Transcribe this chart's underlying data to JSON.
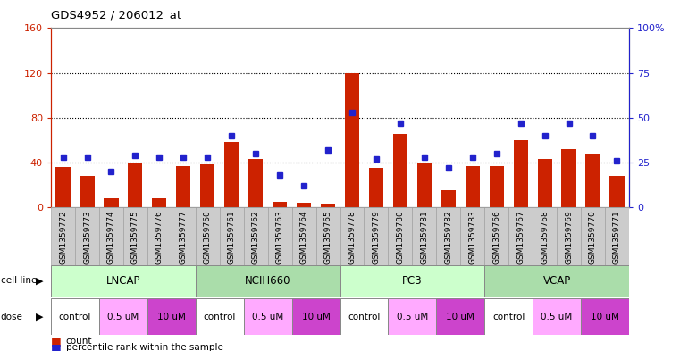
{
  "title": "GDS4952 / 206012_at",
  "samples": [
    "GSM1359772",
    "GSM1359773",
    "GSM1359774",
    "GSM1359775",
    "GSM1359776",
    "GSM1359777",
    "GSM1359760",
    "GSM1359761",
    "GSM1359762",
    "GSM1359763",
    "GSM1359764",
    "GSM1359765",
    "GSM1359778",
    "GSM1359779",
    "GSM1359780",
    "GSM1359781",
    "GSM1359782",
    "GSM1359783",
    "GSM1359766",
    "GSM1359767",
    "GSM1359768",
    "GSM1359769",
    "GSM1359770",
    "GSM1359771"
  ],
  "counts": [
    36,
    28,
    8,
    40,
    8,
    37,
    38,
    58,
    43,
    5,
    4,
    3,
    120,
    35,
    65,
    40,
    15,
    37,
    37,
    60,
    43,
    52,
    48,
    28
  ],
  "percentile_ranks": [
    28,
    28,
    20,
    29,
    28,
    28,
    28,
    40,
    30,
    18,
    12,
    32,
    53,
    27,
    47,
    28,
    22,
    28,
    30,
    47,
    40,
    47,
    40,
    26
  ],
  "cell_lines": [
    {
      "name": "LNCAP",
      "start": 0,
      "end": 6,
      "color": "#ccffcc"
    },
    {
      "name": "NCIH660",
      "start": 6,
      "end": 12,
      "color": "#aaddaa"
    },
    {
      "name": "PC3",
      "start": 12,
      "end": 18,
      "color": "#ccffcc"
    },
    {
      "name": "VCAP",
      "start": 18,
      "end": 24,
      "color": "#aaddaa"
    }
  ],
  "doses": [
    {
      "label": "control",
      "start": 0,
      "end": 2,
      "color": "#ffffff"
    },
    {
      "label": "0.5 uM",
      "start": 2,
      "end": 4,
      "color": "#ffaaff"
    },
    {
      "label": "10 uM",
      "start": 4,
      "end": 6,
      "color": "#cc44cc"
    },
    {
      "label": "control",
      "start": 6,
      "end": 8,
      "color": "#ffffff"
    },
    {
      "label": "0.5 uM",
      "start": 8,
      "end": 10,
      "color": "#ffaaff"
    },
    {
      "label": "10 uM",
      "start": 10,
      "end": 12,
      "color": "#cc44cc"
    },
    {
      "label": "control",
      "start": 12,
      "end": 14,
      "color": "#ffffff"
    },
    {
      "label": "0.5 uM",
      "start": 14,
      "end": 16,
      "color": "#ffaaff"
    },
    {
      "label": "10 uM",
      "start": 16,
      "end": 18,
      "color": "#cc44cc"
    },
    {
      "label": "control",
      "start": 18,
      "end": 20,
      "color": "#ffffff"
    },
    {
      "label": "0.5 uM",
      "start": 20,
      "end": 22,
      "color": "#ffaaff"
    },
    {
      "label": "10 uM",
      "start": 22,
      "end": 24,
      "color": "#cc44cc"
    }
  ],
  "bar_color": "#cc2200",
  "dot_color": "#2222cc",
  "left_ylim": [
    0,
    160
  ],
  "left_yticks": [
    0,
    40,
    80,
    120,
    160
  ],
  "right_ylim": [
    0,
    100
  ],
  "right_yticks": [
    0,
    25,
    50,
    75,
    100
  ],
  "right_yticklabels": [
    "0",
    "25",
    "50",
    "75",
    "100%"
  ],
  "grid_lines": [
    40,
    80,
    120
  ],
  "bg_color": "#ffffff",
  "legend_count_color": "#cc2200",
  "legend_dot_color": "#2222cc",
  "fig_width": 7.61,
  "fig_height": 3.93,
  "dpi": 100
}
